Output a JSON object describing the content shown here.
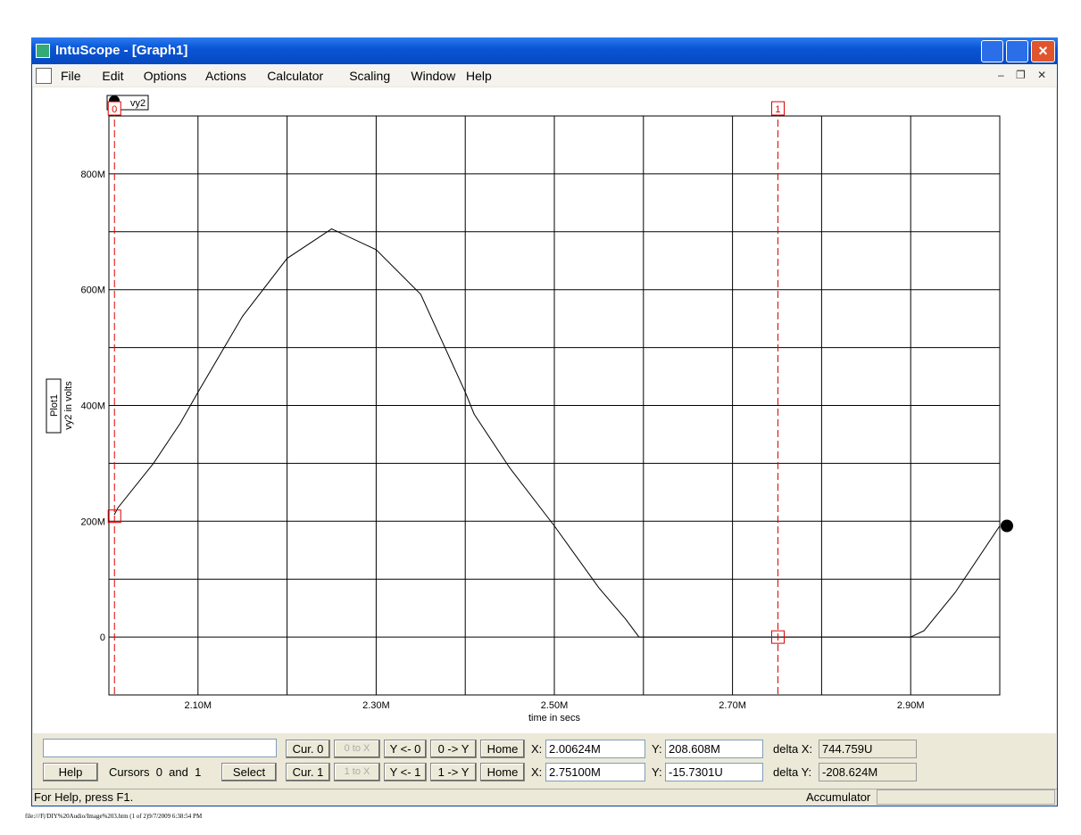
{
  "window": {
    "title": "IntuScope - [Graph1]"
  },
  "menu": [
    "File",
    "Edit",
    "Options",
    "Actions",
    "Calculator",
    "Scaling",
    "Window",
    "Help"
  ],
  "chart_data": {
    "type": "line",
    "x_label": "time in secs",
    "y_label": "vy2 in volts",
    "plot_name": "Plot1",
    "x": [
      2.006,
      2.01,
      2.05,
      2.08,
      2.1,
      2.15,
      2.2,
      2.25,
      2.3,
      2.35,
      2.4,
      2.41,
      2.45,
      2.5,
      2.55,
      2.58,
      2.595,
      2.7,
      2.8,
      2.9,
      2.915,
      2.95,
      3.0
    ],
    "series": [
      {
        "name": "vy2",
        "color": "#000000",
        "values": [
          211,
          223,
          300,
          369,
          423,
          554,
          654,
          705,
          669,
          592,
          423,
          385,
          292,
          192,
          85,
          31,
          0,
          0,
          0,
          0,
          11,
          77,
          192
        ]
      }
    ],
    "xlim": [
      2.0,
      3.0
    ],
    "ylim": [
      -100,
      900
    ],
    "xticks": [
      {
        "value": 2.1,
        "label": "2.10M"
      },
      {
        "value": 2.2,
        "label": null
      },
      {
        "value": 2.3,
        "label": "2.30M"
      },
      {
        "value": 2.4,
        "label": null
      },
      {
        "value": 2.5,
        "label": "2.50M"
      },
      {
        "value": 2.6,
        "label": null
      },
      {
        "value": 2.7,
        "label": "2.70M"
      },
      {
        "value": 2.8,
        "label": null
      },
      {
        "value": 2.9,
        "label": "2.90M"
      }
    ],
    "yticks": [
      {
        "value": 0,
        "label": "0"
      },
      {
        "value": 100,
        "label": null
      },
      {
        "value": 200,
        "label": "200M"
      },
      {
        "value": 300,
        "label": null
      },
      {
        "value": 400,
        "label": "400M"
      },
      {
        "value": 500,
        "label": null
      },
      {
        "value": 600,
        "label": "600M"
      },
      {
        "value": 700,
        "label": null
      },
      {
        "value": 800,
        "label": "800M"
      }
    ],
    "grid": true,
    "cursors": [
      {
        "label": "0",
        "x": 2.00624,
        "y": 208.608,
        "color": "#dd0000"
      },
      {
        "label": "1",
        "x": 2.751,
        "y": -0.0157301,
        "color": "#dd0000"
      }
    ]
  },
  "toolbar": {
    "cur0": "Cur. 0",
    "to_x0": "0 to X",
    "y_from0": "Y <- 0",
    "to_y0": "0 -> Y",
    "home0": "Home",
    "x_label0": "X:",
    "x0": "2.00624M",
    "y_label0": "Y:",
    "y0": "208.608M",
    "delta_x_label": "delta X:",
    "delta_x": "744.759U",
    "help": "Help",
    "cursors": "Cursors  0  and  1",
    "select": "Select",
    "cur1": "Cur. 1",
    "to_x1": "1 to X",
    "y_from1": "Y <- 1",
    "to_y1": "1 -> Y",
    "home1": "Home",
    "x_label1": "X:",
    "x1": "2.75100M",
    "y_label1": "Y:",
    "y1": "-15.7301U",
    "delta_y_label": "delta Y:",
    "delta_y": "-208.624M"
  },
  "status": {
    "left": "For Help, press F1.",
    "right": "Accumulator"
  },
  "footer": "file:///F|/DIY%20Audio/Image%203.htm (1 of 2)9/7/2009 6:38:54 PM"
}
